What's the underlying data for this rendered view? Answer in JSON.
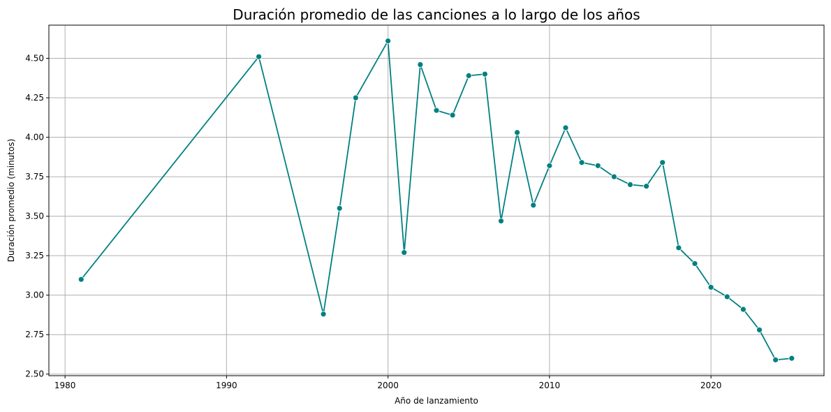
{
  "chart_data": {
    "type": "line",
    "title": "Duración promedio de las canciones a lo largo de los años",
    "xlabel": "Año de lanzamiento",
    "ylabel": "Duración promedio (minutos)",
    "xlim": [
      1979,
      2027
    ],
    "ylim": [
      2.49,
      4.71
    ],
    "xticks": [
      1980,
      1990,
      2000,
      2010,
      2020
    ],
    "yticks": [
      2.5,
      2.75,
      3.0,
      3.25,
      3.5,
      3.75,
      4.0,
      4.25,
      4.5
    ],
    "ytick_labels": [
      "2.50",
      "2.75",
      "3.00",
      "3.25",
      "3.50",
      "3.75",
      "4.00",
      "4.25",
      "4.50"
    ],
    "grid": true,
    "color": "#008080",
    "x": [
      1981,
      1992,
      1996,
      1997,
      1998,
      2000,
      2001,
      2002,
      2003,
      2004,
      2005,
      2006,
      2007,
      2008,
      2009,
      2010,
      2011,
      2012,
      2013,
      2014,
      2015,
      2016,
      2017,
      2018,
      2019,
      2020,
      2021,
      2022,
      2023,
      2024,
      2025
    ],
    "y": [
      3.1,
      4.51,
      2.88,
      3.55,
      4.25,
      4.61,
      3.27,
      4.46,
      4.17,
      4.14,
      4.39,
      4.4,
      3.47,
      4.03,
      3.57,
      3.82,
      4.06,
      3.84,
      3.82,
      3.75,
      3.7,
      3.69,
      3.84,
      3.3,
      3.2,
      3.05,
      2.99,
      2.91,
      2.78,
      2.59,
      2.6
    ]
  }
}
